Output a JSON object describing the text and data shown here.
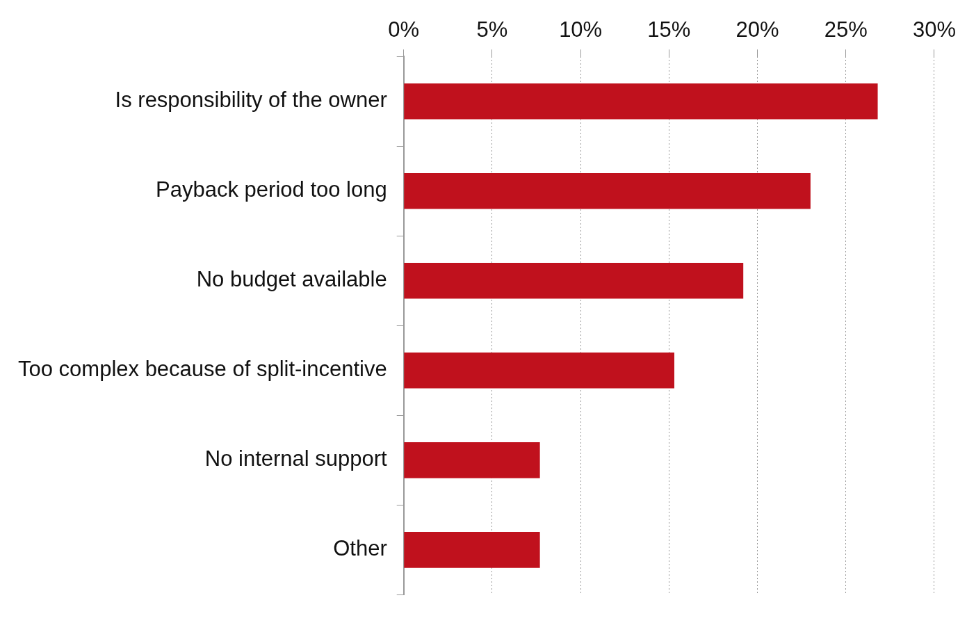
{
  "chart_data": {
    "type": "bar",
    "orientation": "horizontal",
    "categories": [
      "Is responsibility of the owner",
      "Payback period too long",
      "No budget available",
      "Too complex because of split-incentive",
      "No internal support",
      "Other"
    ],
    "values": [
      26.8,
      23,
      19.2,
      15.3,
      7.7,
      7.7
    ],
    "color": "#c0111d",
    "xlim": [
      0,
      30
    ],
    "xticks": [
      {
        "value": 0,
        "label": "0%"
      },
      {
        "value": 5,
        "label": "5%"
      },
      {
        "value": 10,
        "label": "10%"
      },
      {
        "value": 15,
        "label": "15%"
      },
      {
        "value": 20,
        "label": "20%"
      },
      {
        "value": 25,
        "label": "25%"
      },
      {
        "value": 30,
        "label": "30%"
      }
    ],
    "grid": "x",
    "legend": false
  }
}
